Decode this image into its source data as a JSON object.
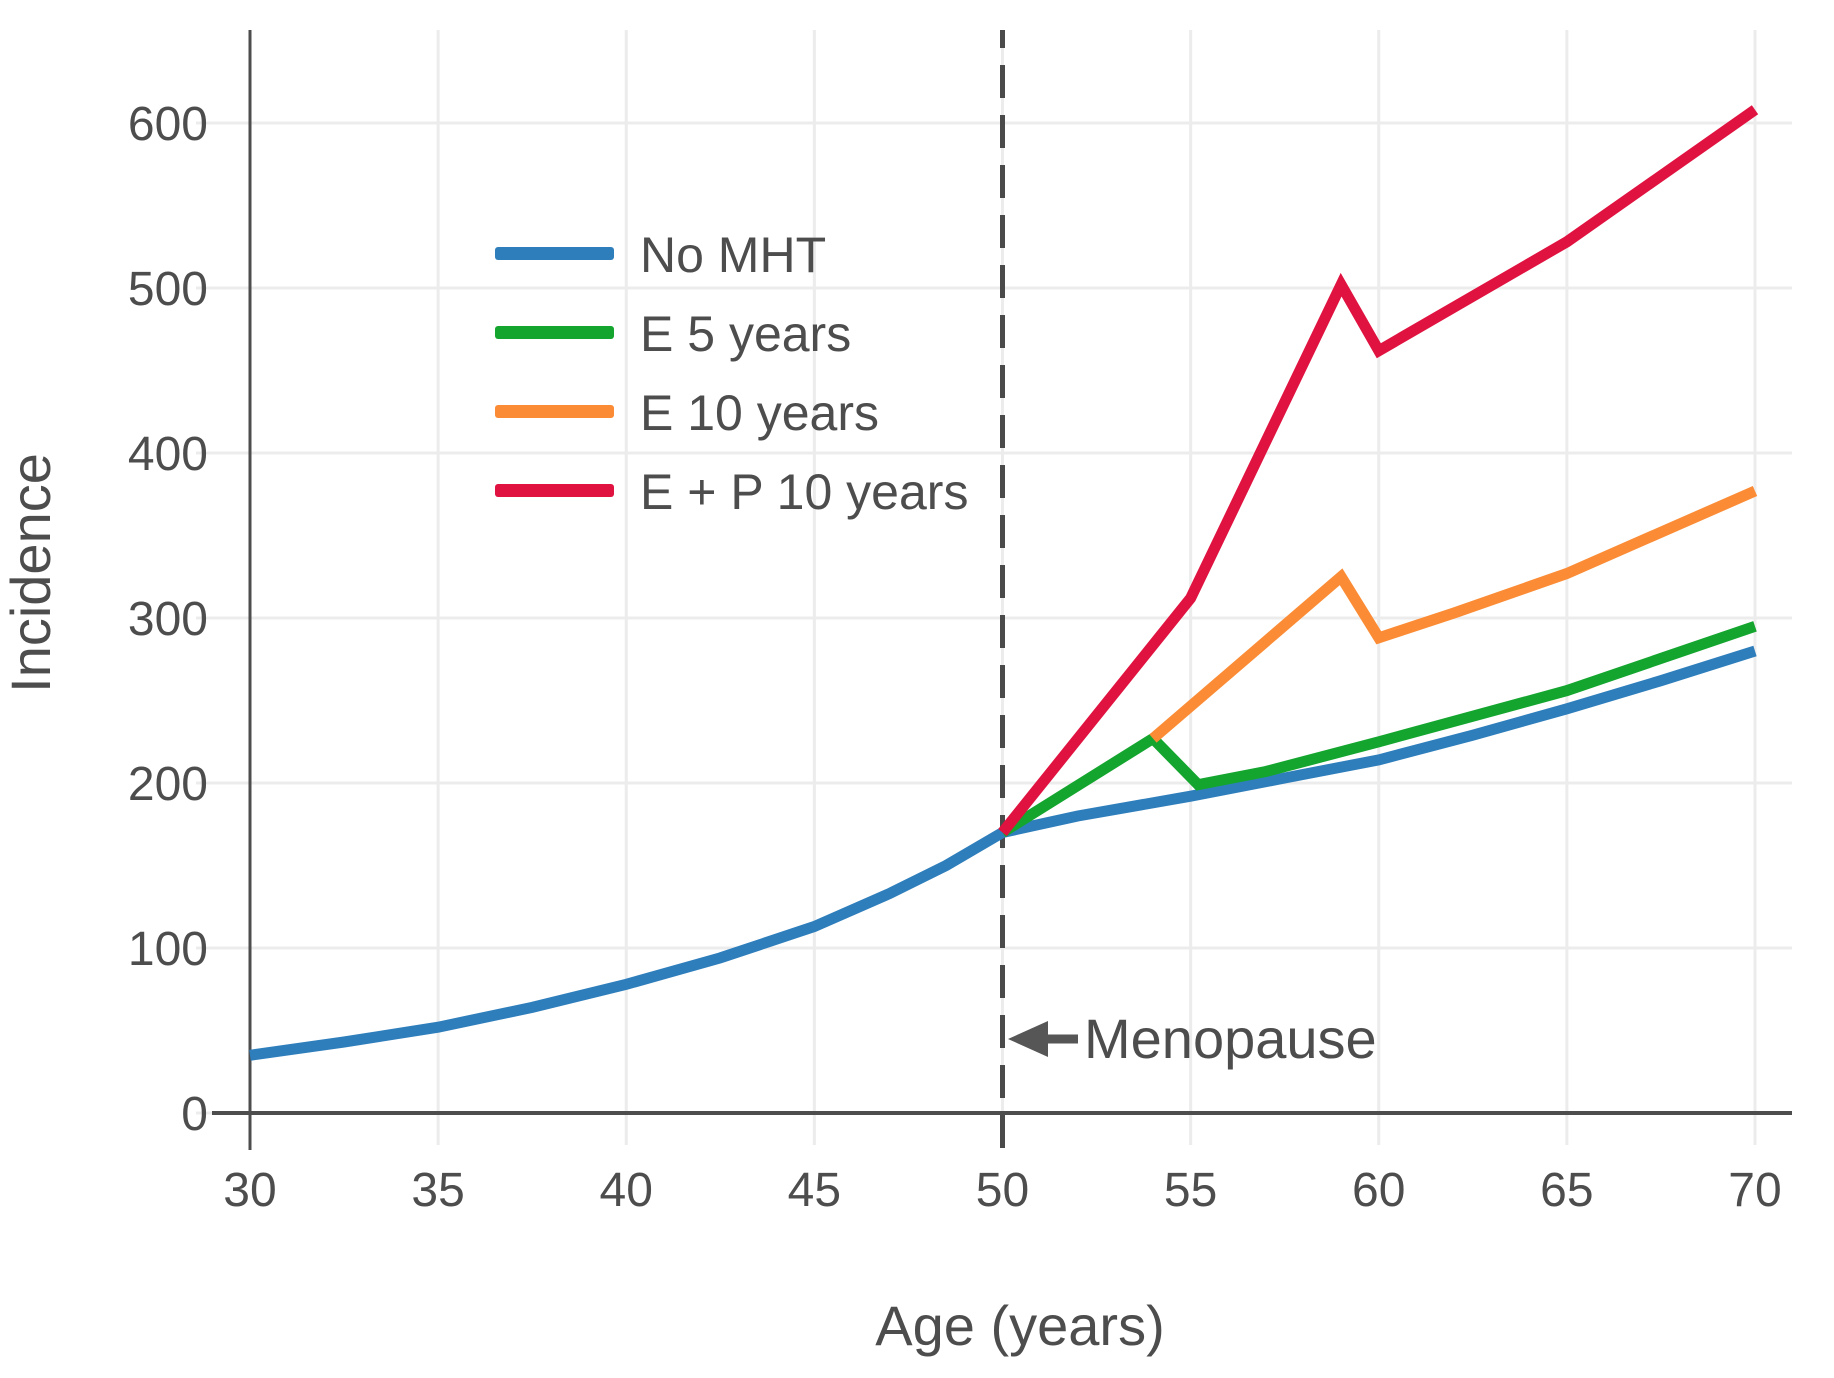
{
  "style": {
    "background": "#ffffff",
    "grid_color": "#ececec",
    "axis_color": "#4d4d4d",
    "text_color": "#4d4d4d",
    "annotation_color": "#565656"
  },
  "chart_data": {
    "type": "line",
    "title": "",
    "xlabel": "Age (years)",
    "ylabel": "Incidence",
    "xlim": [
      30,
      71
    ],
    "ylim": [
      0,
      655
    ],
    "x_ticks": [
      30,
      35,
      40,
      45,
      50,
      55,
      60,
      65,
      70
    ],
    "y_ticks": [
      0,
      100,
      200,
      300,
      400,
      500,
      600
    ],
    "grid": true,
    "legend_position": "upper-left-inside",
    "series": [
      {
        "name": "No MHT",
        "color": "#2e7ebc",
        "x": [
          30,
          32.5,
          35,
          37.5,
          40,
          42.5,
          45,
          47,
          48.5,
          50,
          52,
          55,
          57.5,
          60,
          62.5,
          65,
          67.5,
          70
        ],
        "y": [
          35,
          43,
          52,
          64,
          78,
          94,
          113,
          133,
          150,
          170,
          180,
          192,
          203,
          214,
          229,
          245,
          262,
          280
        ]
      },
      {
        "name": "E 5 years",
        "color": "#14a52f",
        "x": [
          50,
          54,
          55.2,
          57,
          60,
          65,
          70
        ],
        "y": [
          170,
          227,
          199,
          207,
          225,
          256,
          295
        ]
      },
      {
        "name": "E 10 years",
        "color": "#fb8c35",
        "x": [
          54,
          59,
          60,
          62,
          65,
          70
        ],
        "y": [
          227,
          325,
          288,
          303,
          327,
          377
        ]
      },
      {
        "name": "E + P 10 years",
        "color": "#e01240",
        "x": [
          50,
          55,
          59,
          60,
          65,
          70
        ],
        "y": [
          170,
          312,
          502,
          462,
          528,
          608
        ]
      }
    ],
    "reference_line": {
      "axis": "x",
      "at": 50,
      "style": "dashed",
      "color": "#4a4a4a"
    },
    "annotation": {
      "text": "Menopause",
      "arrow": "left",
      "points_to_age": 50,
      "at_value": 60
    }
  }
}
